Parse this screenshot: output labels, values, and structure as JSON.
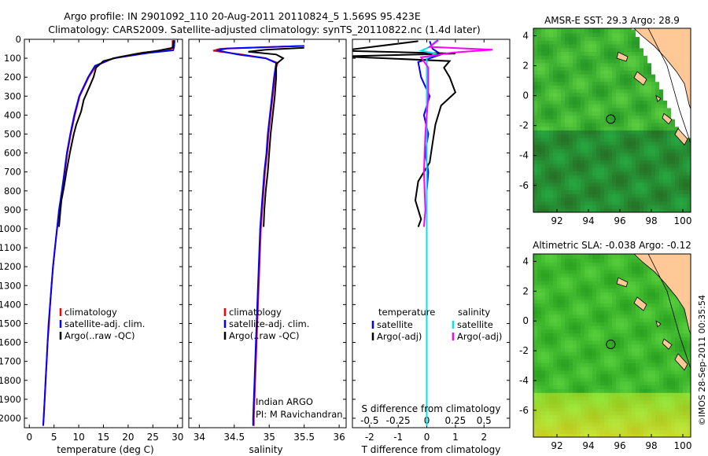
{
  "header": {
    "line1": "Argo profile: IN 2901092_110 20-Aug-2011 20110824_5 1.569S 95.423E",
    "line2": "Climatology: CARS2009. Satellite-adjusted climatology: synTS_20110822.nc (1.4d later)"
  },
  "side_stamp": "©IMOS 28-Sep-2011 00:35:54",
  "colors": {
    "climatology": "#ff0000",
    "satellite": "#0000ff",
    "argo": "#000000",
    "salinity_satellite": "#00e5ee",
    "salinity_argo": "#ff00ff",
    "land": "#ffc896",
    "map_green": "#33cc33"
  },
  "chart_data": [
    {
      "type": "line",
      "id": "temperature",
      "xlabel": "temperature (deg C)",
      "xlim": [
        -1,
        31
      ],
      "xticks": [
        0,
        5,
        10,
        15,
        20,
        25,
        30
      ],
      "ylim": [
        0,
        2050
      ],
      "yticks": [
        0,
        100,
        200,
        300,
        400,
        500,
        600,
        700,
        800,
        900,
        1000,
        1100,
        1200,
        1300,
        1400,
        1500,
        1600,
        1700,
        1800,
        1900,
        2000
      ],
      "legend": [
        "climatology",
        "satellite-adj. clim.",
        "Argo(..raw -QC)"
      ],
      "series": [
        {
          "name": "climatology",
          "color": "#ff0000",
          "points": [
            [
              29.0,
              5
            ],
            [
              29.0,
              40
            ],
            [
              28.6,
              55
            ],
            [
              23,
              70
            ],
            [
              17,
              100
            ],
            [
              13.5,
              140
            ],
            [
              12,
              200
            ],
            [
              10.2,
              300
            ],
            [
              9.2,
              400
            ],
            [
              8.4,
              500
            ],
            [
              7.7,
              600
            ],
            [
              7.2,
              700
            ],
            [
              6.6,
              800
            ],
            [
              6.1,
              900
            ],
            [
              5.6,
              1000
            ],
            [
              5.2,
              1100
            ],
            [
              4.8,
              1200
            ],
            [
              4.5,
              1300
            ],
            [
              4.2,
              1400
            ],
            [
              4.0,
              1500
            ],
            [
              3.7,
              1600
            ],
            [
              3.5,
              1700
            ],
            [
              3.3,
              1800
            ],
            [
              3.1,
              1900
            ],
            [
              2.9,
              2000
            ],
            [
              2.8,
              2040
            ]
          ]
        },
        {
          "name": "satellite-adj. clim.",
          "color": "#0000ff",
          "points": [
            [
              29.4,
              5
            ],
            [
              29.3,
              40
            ],
            [
              29.1,
              58
            ],
            [
              24,
              72
            ],
            [
              17,
              100
            ],
            [
              13.3,
              140
            ],
            [
              11.9,
              200
            ],
            [
              10.1,
              300
            ],
            [
              9.1,
              400
            ],
            [
              8.3,
              500
            ],
            [
              7.6,
              600
            ],
            [
              7.1,
              700
            ],
            [
              6.6,
              800
            ],
            [
              6.0,
              900
            ],
            [
              5.6,
              1000
            ],
            [
              5.2,
              1100
            ],
            [
              4.8,
              1200
            ],
            [
              4.5,
              1300
            ],
            [
              4.2,
              1400
            ],
            [
              3.9,
              1500
            ],
            [
              3.7,
              1600
            ],
            [
              3.5,
              1700
            ],
            [
              3.3,
              1800
            ],
            [
              3.1,
              1900
            ],
            [
              2.9,
              2000
            ],
            [
              2.8,
              2040
            ]
          ]
        },
        {
          "name": "Argo(..raw -QC)",
          "color": "#000000",
          "points": [
            [
              29.2,
              5
            ],
            [
              29.0,
              45
            ],
            [
              26,
              60
            ],
            [
              22,
              75
            ],
            [
              18,
              95
            ],
            [
              15,
              115
            ],
            [
              13.5,
              150
            ],
            [
              13,
              200
            ],
            [
              12,
              260
            ],
            [
              11,
              320
            ],
            [
              10.5,
              380
            ],
            [
              9.5,
              450
            ],
            [
              9.0,
              500
            ],
            [
              8.6,
              550
            ],
            [
              8.2,
              600
            ],
            [
              7.5,
              700
            ],
            [
              7.0,
              780
            ],
            [
              6.5,
              850
            ],
            [
              6.3,
              900
            ],
            [
              6.0,
              990
            ]
          ]
        }
      ]
    },
    {
      "type": "line",
      "id": "salinity",
      "xlabel": "salinity",
      "xlim": [
        33.85,
        36.1
      ],
      "xticks": [
        34,
        34.5,
        35,
        35.5,
        36
      ],
      "xticklabels": [
        "34",
        "34.5",
        "35",
        "35.5",
        "36"
      ],
      "ylim": [
        0,
        2050
      ],
      "legend": [
        "climatology",
        "satellite-adj. clim.",
        "Argo(..raw -QC)"
      ],
      "note": [
        "Indian ARGO",
        "PI: M Ravichandran"
      ],
      "series": [
        {
          "name": "climatology",
          "color": "#ff0000",
          "points": [
            [
              35.5,
              35
            ],
            [
              34.3,
              50
            ],
            [
              34.2,
              60
            ],
            [
              34.6,
              80
            ],
            [
              34.95,
              100
            ],
            [
              35.12,
              125
            ],
            [
              35.1,
              150
            ],
            [
              35.08,
              200
            ],
            [
              35.05,
              300
            ],
            [
              35.02,
              400
            ],
            [
              34.99,
              500
            ],
            [
              34.97,
              600
            ],
            [
              34.94,
              700
            ],
            [
              34.92,
              800
            ],
            [
              34.9,
              900
            ],
            [
              34.88,
              1000
            ],
            [
              34.86,
              1200
            ],
            [
              34.84,
              1400
            ],
            [
              34.82,
              1600
            ],
            [
              34.8,
              1800
            ],
            [
              34.78,
              2000
            ],
            [
              34.78,
              2040
            ]
          ]
        },
        {
          "name": "satellite-adj. clim.",
          "color": "#0000ff",
          "points": [
            [
              35.5,
              35
            ],
            [
              34.4,
              48
            ],
            [
              34.25,
              58
            ],
            [
              34.55,
              80
            ],
            [
              34.95,
              100
            ],
            [
              35.1,
              125
            ],
            [
              35.09,
              150
            ],
            [
              35.07,
              200
            ],
            [
              35.04,
              300
            ],
            [
              35.01,
              400
            ],
            [
              34.98,
              500
            ],
            [
              34.96,
              600
            ],
            [
              34.93,
              700
            ],
            [
              34.91,
              800
            ],
            [
              34.89,
              900
            ],
            [
              34.87,
              1000
            ],
            [
              34.85,
              1200
            ],
            [
              34.83,
              1400
            ],
            [
              34.81,
              1600
            ],
            [
              34.79,
              1800
            ],
            [
              34.77,
              2000
            ],
            [
              34.77,
              2040
            ]
          ]
        },
        {
          "name": "Argo(..raw -QC)",
          "color": "#000000",
          "points": [
            [
              35.5,
              45
            ],
            [
              34.95,
              55
            ],
            [
              34.7,
              65
            ],
            [
              35.1,
              80
            ],
            [
              35.2,
              100
            ],
            [
              35.1,
              130
            ],
            [
              35.1,
              200
            ],
            [
              35.08,
              300
            ],
            [
              35.05,
              400
            ],
            [
              35.02,
              500
            ],
            [
              35.0,
              600
            ],
            [
              34.98,
              700
            ],
            [
              34.95,
              800
            ],
            [
              34.93,
              900
            ],
            [
              34.92,
              990
            ]
          ]
        }
      ]
    },
    {
      "type": "line",
      "id": "difference",
      "xlabel_bottom": "T difference from climatology",
      "xlabel_top": "S difference from climatology",
      "xlim_T": [
        -2.6,
        2.9
      ],
      "xticks_T": [
        -2,
        -1,
        0,
        1,
        2
      ],
      "xticks_S": [
        -0.5,
        -0.25,
        0,
        0.25,
        0.5
      ],
      "xticklabels_S": [
        "-0.5",
        "-0.25",
        "0",
        "0.25",
        "0.5"
      ],
      "ylim": [
        0,
        2050
      ],
      "legend_headers": [
        "temperature",
        "salinity"
      ],
      "legend": [
        "satellite",
        "Argo(-adj)",
        "satellite",
        "Argo(-adj)"
      ],
      "series": [
        {
          "name": "satellite",
          "group": "temperature",
          "color": "#0000ff",
          "points": [
            [
              0.1,
              10
            ],
            [
              0.2,
              50
            ],
            [
              0.5,
              80
            ],
            [
              -0.3,
              120
            ],
            [
              -0.2,
              200
            ],
            [
              0.1,
              300
            ],
            [
              -0.1,
              400
            ],
            [
              0.05,
              500
            ],
            [
              -0.05,
              600
            ],
            [
              0.05,
              700
            ],
            [
              0,
              800
            ],
            [
              0,
              1000
            ],
            [
              0,
              1500
            ],
            [
              0,
              2040
            ]
          ]
        },
        {
          "name": "Argo(-adj)",
          "group": "temperature",
          "color": "#000000",
          "points": [
            [
              -0.3,
              10
            ],
            [
              -3,
              60
            ],
            [
              1,
              75
            ],
            [
              -3,
              90
            ],
            [
              0.8,
              115
            ],
            [
              0.6,
              150
            ],
            [
              0.8,
              200
            ],
            [
              1.0,
              280
            ],
            [
              0.5,
              350
            ],
            [
              0.3,
              450
            ],
            [
              0.2,
              550
            ],
            [
              0.1,
              650
            ],
            [
              -0.3,
              750
            ],
            [
              -0.4,
              850
            ],
            [
              -0.2,
              950
            ],
            [
              -0.3,
              990
            ]
          ]
        },
        {
          "name": "satellite",
          "group": "salinity",
          "color": "#00e5ee",
          "points": [
            [
              0.35,
              5
            ],
            [
              0.1,
              40
            ],
            [
              -0.2,
              60
            ],
            [
              0.3,
              75
            ],
            [
              0,
              100
            ],
            [
              0,
              150
            ],
            [
              0,
              300
            ],
            [
              0,
              700
            ],
            [
              0,
              2040
            ]
          ]
        },
        {
          "name": "Argo(-adj)",
          "group": "salinity",
          "color": "#ff00ff",
          "points": [
            [
              0.4,
              5
            ],
            [
              0.1,
              40
            ],
            [
              2.3,
              55
            ],
            [
              0.9,
              70
            ],
            [
              -0.2,
              95
            ],
            [
              0.05,
              150
            ],
            [
              0.05,
              300
            ],
            [
              -0.05,
              500
            ],
            [
              -0.1,
              700
            ],
            [
              -0.05,
              900
            ],
            [
              -0.1,
              990
            ]
          ]
        }
      ]
    },
    {
      "type": "heatmap",
      "id": "sst_map",
      "title": "AMSR-E SST: 29.3 Argo: 28.9",
      "xlim": [
        90.5,
        100.5
      ],
      "ylim": [
        -7.8,
        4.5
      ],
      "xticks": [
        92,
        94,
        96,
        98,
        100
      ],
      "yticks": [
        4,
        2,
        0,
        -2,
        -4,
        -6
      ],
      "marker": [
        95.42,
        -1.57
      ]
    },
    {
      "type": "heatmap",
      "id": "sla_map",
      "title": "Altimetric SLA: -0.038 Argo: -0.12",
      "xlim": [
        90.5,
        100.5
      ],
      "ylim": [
        -7.8,
        4.5
      ],
      "xticks": [
        92,
        94,
        96,
        98,
        100
      ],
      "yticks": [
        4,
        2,
        0,
        -2,
        -4,
        -6
      ],
      "marker": [
        95.42,
        -1.57
      ]
    }
  ]
}
